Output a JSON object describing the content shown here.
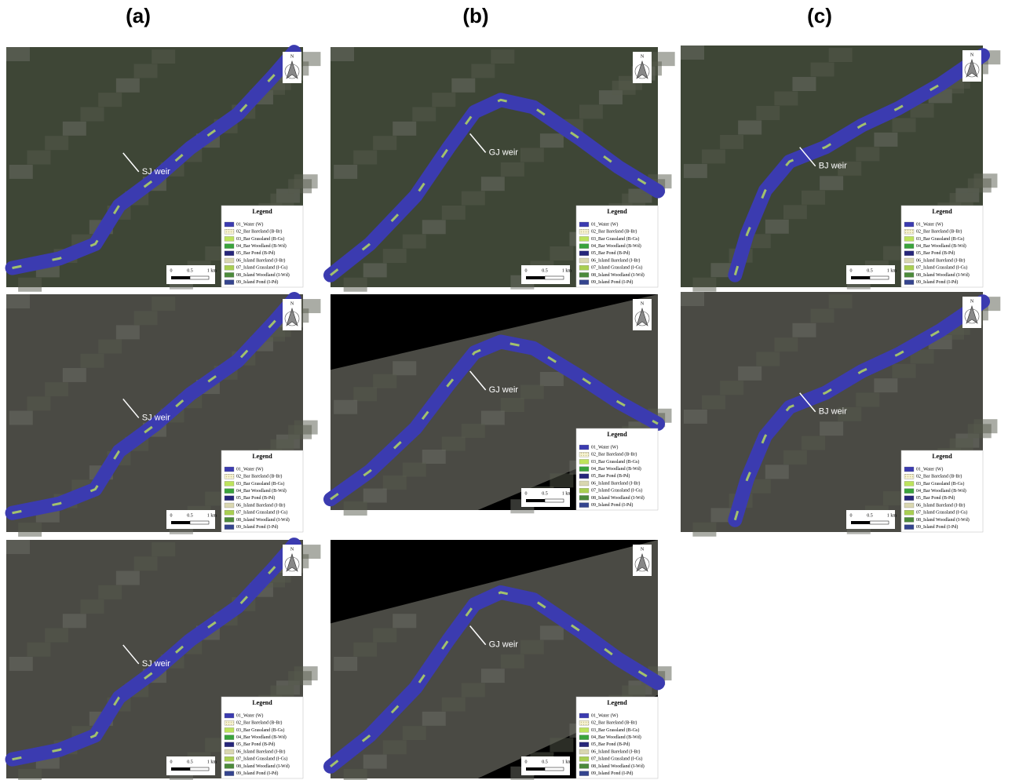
{
  "figure": {
    "legend": {
      "title": "Legend",
      "items": [
        {
          "label": "01_Water (W)",
          "color": "#3b3bb0"
        },
        {
          "label": "02_Bar Bareland (B-Br)",
          "color": "#f3f0c6"
        },
        {
          "label": "03_Bar Grassland (B-Gs)",
          "color": "#bde35c"
        },
        {
          "label": "04_Bar Woodland (B-Wd)",
          "color": "#3aa33c"
        },
        {
          "label": "05_Bar Pond (B-Pd)",
          "color": "#26267a"
        },
        {
          "label": "06_Island Bareland (I-Br)",
          "color": "#d9d7b0"
        },
        {
          "label": "07_Island Grassland (I-Gs)",
          "color": "#a9cf52"
        },
        {
          "label": "08_Island Woodland (I-Wd)",
          "color": "#4c8a3b"
        },
        {
          "label": "09_Island Pond (I-Pd)",
          "color": "#34448e"
        }
      ]
    },
    "columns": [
      {
        "label": "(a)",
        "panels": [
          {
            "weir": "SJ weir",
            "north": "N",
            "scale": [
              "0",
              "0.5",
              "1 km"
            ]
          },
          {
            "weir": "SJ weir",
            "north": "N",
            "scale": [
              "0",
              "0.5",
              "1 km"
            ]
          },
          {
            "weir": "SJ weir",
            "north": "N",
            "scale": [
              "0",
              "0.5",
              "1 km"
            ]
          }
        ]
      },
      {
        "label": "(b)",
        "panels": [
          {
            "weir": "GJ weir",
            "north": "N",
            "scale": [
              "0",
              "0.5",
              "1 km"
            ]
          },
          {
            "weir": "GJ weir",
            "north": "N",
            "scale": [
              "0",
              "0.5",
              "1 km"
            ]
          },
          {
            "weir": "GJ weir",
            "north": "N",
            "scale": [
              "0",
              "0.5",
              "1 km"
            ]
          }
        ]
      },
      {
        "label": "(c)",
        "panels": [
          {
            "weir": "BJ weir",
            "north": "N",
            "scale": [
              "0",
              "0.5",
              "1 km"
            ]
          },
          {
            "weir": "BJ weir",
            "north": "N",
            "scale": [
              "0",
              "0.5",
              "1 km"
            ]
          }
        ]
      }
    ]
  }
}
